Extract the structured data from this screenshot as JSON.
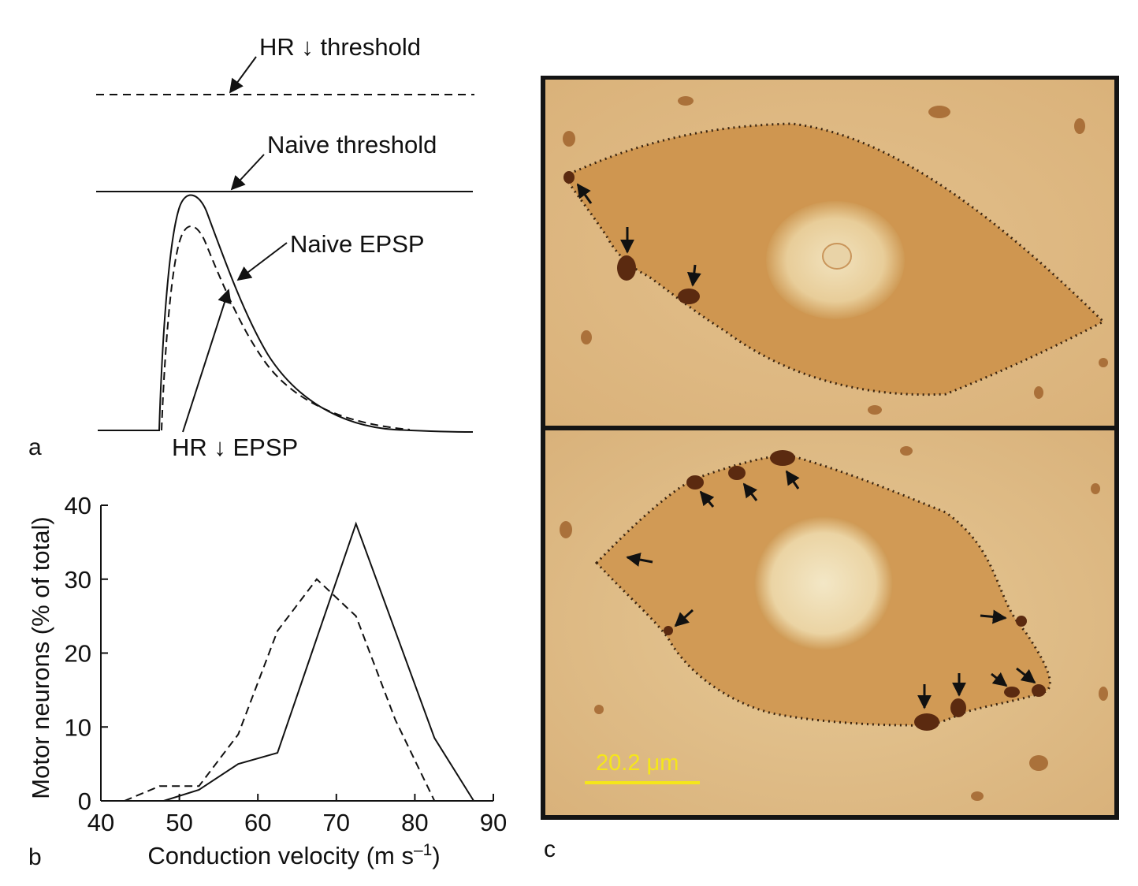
{
  "panels": {
    "a": "a",
    "b": "b",
    "c": "c"
  },
  "panel_a": {
    "hr_threshold_label": "HR ↓ threshold",
    "naive_threshold_label": "Naive threshold",
    "naive_epsp_label": "Naive EPSP",
    "hr_epsp_label": "HR ↓ EPSP"
  },
  "chart_data": {
    "type": "line",
    "xlabel": "Conduction velocity (m s–1)",
    "xlabel_main": "Conduction velocity (m s",
    "xlabel_exp": "–1",
    "xlabel_close": ")",
    "ylabel": "Motor neurons (% of total)",
    "xlim": [
      40,
      90
    ],
    "ylim": [
      0,
      40
    ],
    "xticks": [
      40,
      50,
      60,
      70,
      80,
      90
    ],
    "yticks": [
      0,
      10,
      20,
      30,
      40
    ],
    "grid": false,
    "series": [
      {
        "style": "solid",
        "x": [
          48,
          52.5,
          57.5,
          62.5,
          72.5,
          82.5,
          87.5
        ],
        "y": [
          0,
          1.5,
          5,
          6.5,
          37.5,
          8.5,
          0
        ]
      },
      {
        "style": "dashed",
        "x": [
          43,
          47.5,
          52.5,
          57.5,
          62.5,
          67.5,
          72.5,
          77.5,
          82.5
        ],
        "y": [
          0,
          2,
          2,
          9,
          23,
          30,
          25,
          11,
          0
        ]
      }
    ]
  },
  "panel_c": {
    "scale_bar_label": "20.2 μm",
    "colors": {
      "scale_bar": "#f5e61a",
      "tissue": "#d7a55e",
      "frame": "#141414"
    }
  }
}
